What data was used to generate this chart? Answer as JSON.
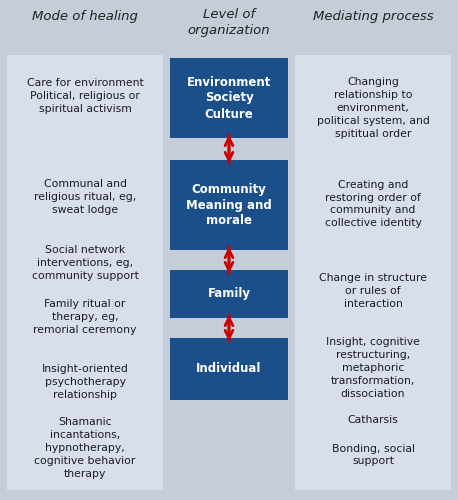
{
  "title_col1": "Mode of healing",
  "title_col2": "Level of\norganization",
  "title_col3": "Mediating process",
  "bg_color": "#c5cdd9",
  "col1_bg": "#d8deea",
  "col3_bg": "#d8deea",
  "center_box_color": "#1a4f8a",
  "arrow_color": "#cc0000",
  "box_labels": [
    "Environment\nSociety\nCulture",
    "Community\nMeaning and\nmorale",
    "Family",
    "Individual"
  ],
  "col1_texts": [
    "Care for environment\nPolitical, religious or\nspiritual activism",
    "Communal and\nreligious ritual, eg,\nsweat lodge",
    "Social network\ninterventions, eg,\ncommunity support",
    "Family ritual or\ntherapy, eg,\nremorial ceremony",
    "Insight-oriented\npsychotherapy\nrelationship",
    "Shamanic\nincantations,\nhypnotherapy,\ncognitive behavior\ntherapy"
  ],
  "col3_texts": [
    "Changing\nrelationship to\nenvironment,\npolitical system, and\nspititual order",
    "Creating and\nrestoring order of\ncommunity and\ncollective identity",
    "Change in structure\nor rules of\ninteraction",
    "Insight, cognitive\nrestructuring,\nmetaphoric\ntransformation,\ndissociation",
    "Catharsis",
    "Bonding, social\nsupport"
  ],
  "fig_width": 4.58,
  "fig_height": 5.0,
  "dpi": 100
}
